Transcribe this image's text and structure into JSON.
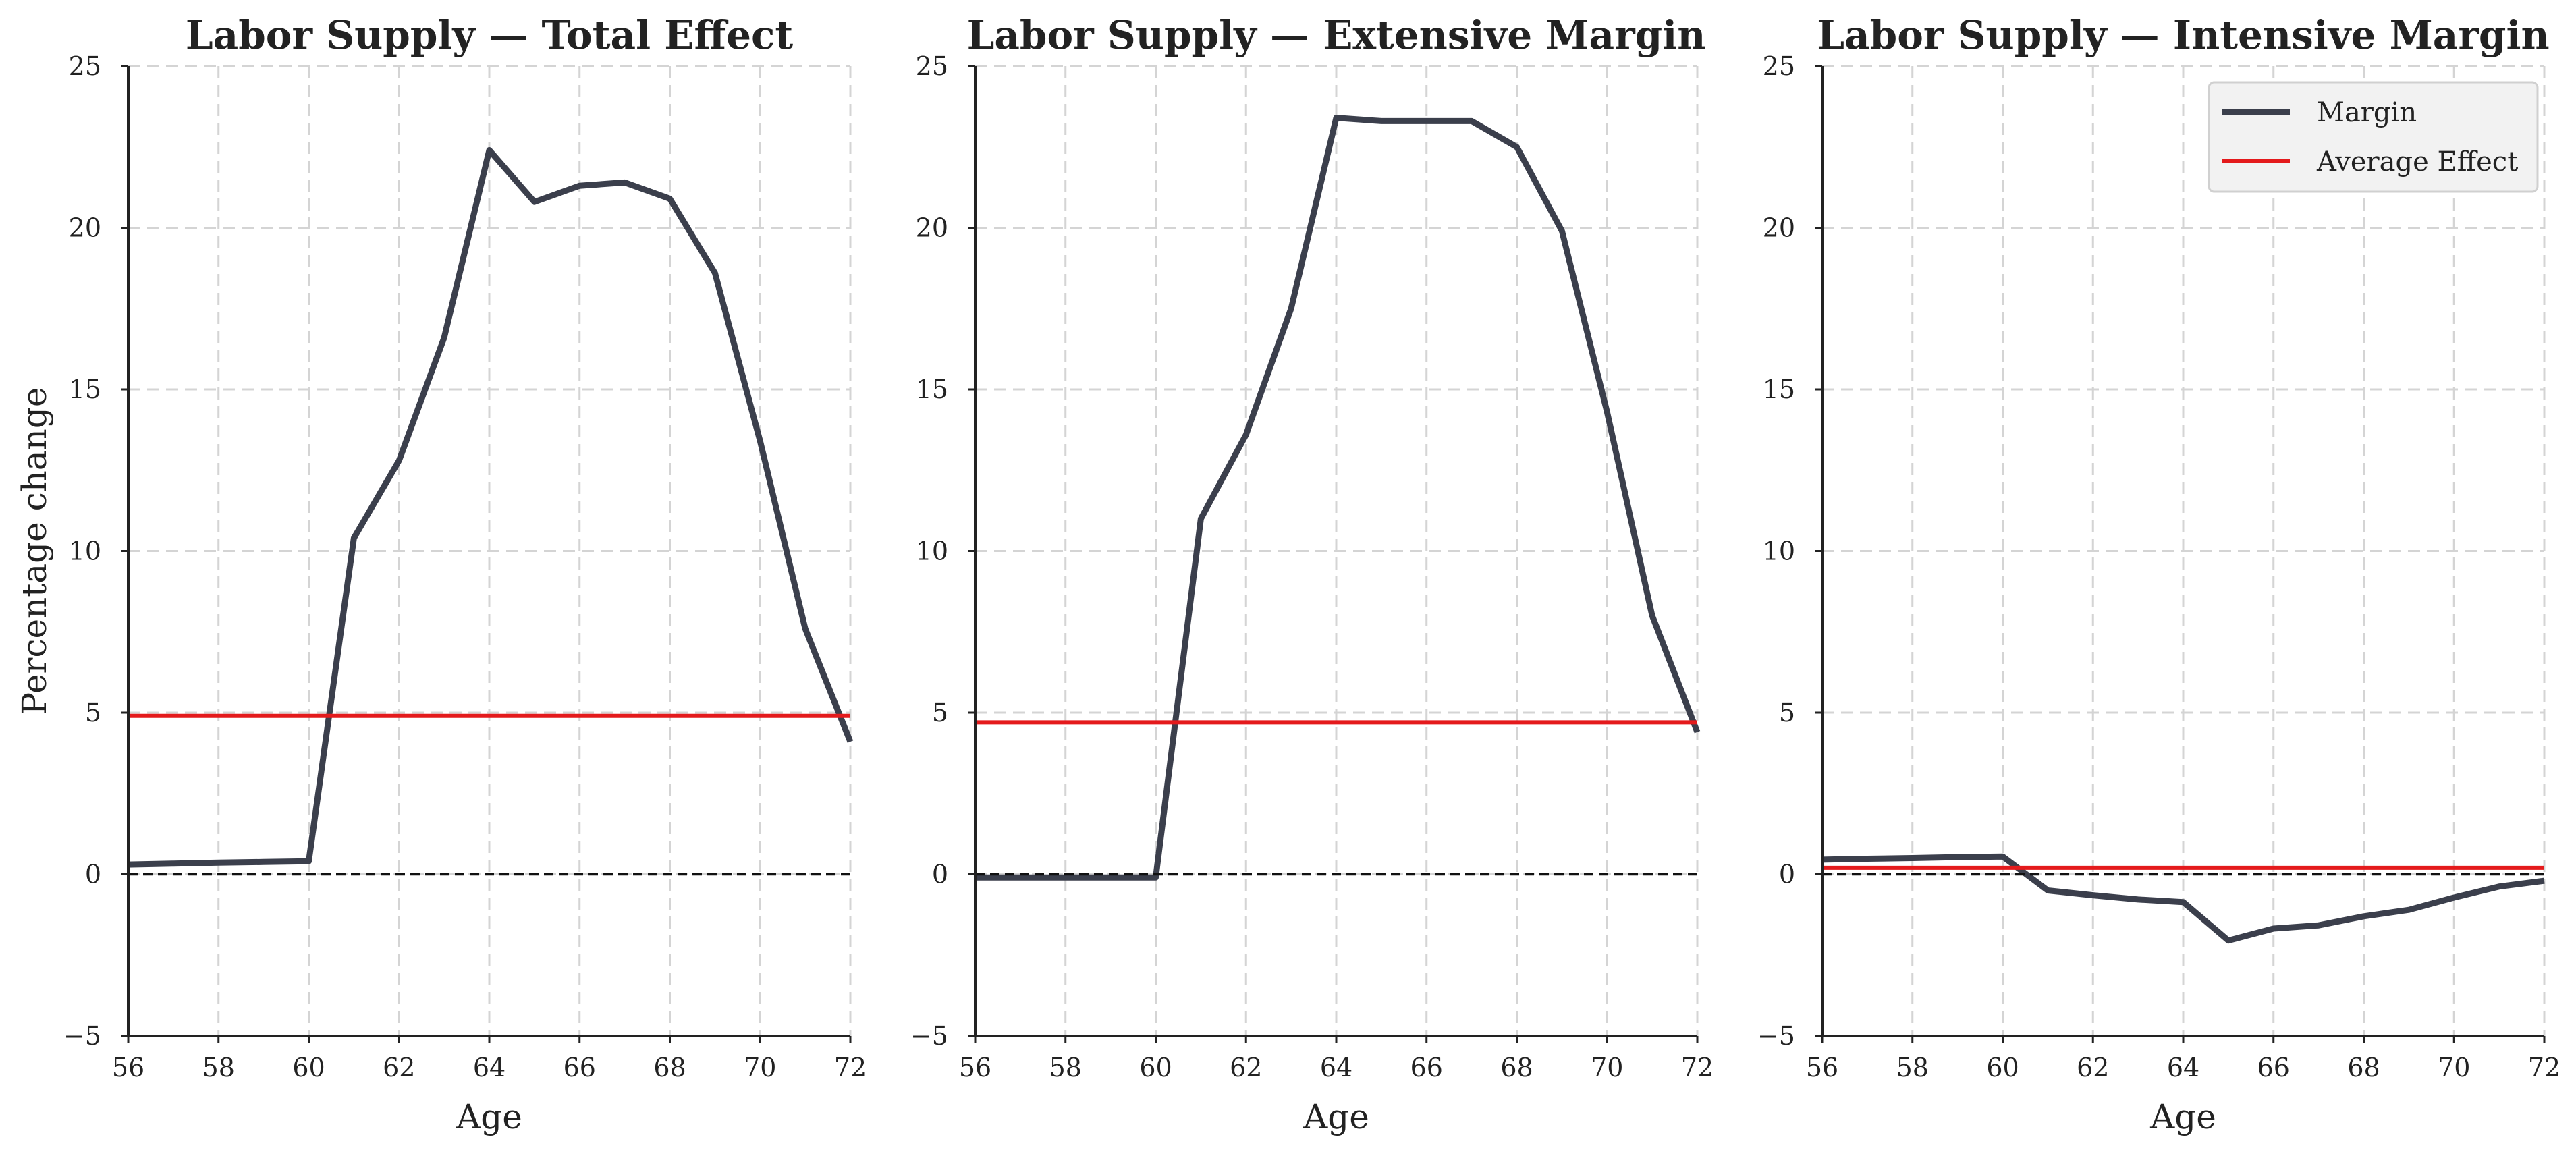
{
  "chart_data": [
    {
      "type": "line",
      "title": "Labor Supply — Total Effect",
      "xlabel": "Age",
      "ylabel": "Percentage change",
      "xlim": [
        56,
        72
      ],
      "ylim": [
        -5,
        25
      ],
      "xticks": [
        56,
        58,
        60,
        62,
        64,
        66,
        68,
        70,
        72
      ],
      "yticks": [
        -5,
        0,
        5,
        10,
        15,
        20,
        25
      ],
      "xtick_labels": [
        "56",
        "58",
        "60",
        "62",
        "64",
        "66",
        "68",
        "70",
        "72"
      ],
      "ytick_labels": [
        "−5",
        "0",
        "5",
        "10",
        "15",
        "20",
        "25"
      ],
      "grid": true,
      "series": [
        {
          "x": [
            56,
            57,
            58,
            59,
            60,
            61,
            62,
            63,
            64,
            65,
            66,
            67,
            68,
            69,
            70,
            71,
            72
          ],
          "values": [
            0.3,
            0.33,
            0.36,
            0.38,
            0.4,
            10.4,
            12.8,
            16.6,
            22.4,
            20.8,
            21.3,
            21.4,
            20.9,
            18.6,
            13.4,
            7.6,
            4.1
          ]
        },
        {
          "type": "hline",
          "y": 4.9
        },
        {
          "type": "hline",
          "y": 0
        }
      ]
    },
    {
      "type": "line",
      "title": "Labor Supply — Extensive Margin",
      "xlabel": "Age",
      "ylabel": "",
      "xlim": [
        56,
        72
      ],
      "ylim": [
        -5,
        25
      ],
      "xticks": [
        56,
        58,
        60,
        62,
        64,
        66,
        68,
        70,
        72
      ],
      "yticks": [
        -5,
        0,
        5,
        10,
        15,
        20,
        25
      ],
      "xtick_labels": [
        "56",
        "58",
        "60",
        "62",
        "64",
        "66",
        "68",
        "70",
        "72"
      ],
      "ytick_labels": [
        "−5",
        "0",
        "5",
        "10",
        "15",
        "20",
        "25"
      ],
      "grid": true,
      "series": [
        {
          "x": [
            56,
            57,
            58,
            59,
            60,
            61,
            62,
            63,
            64,
            65,
            66,
            67,
            68,
            69,
            70,
            71,
            72
          ],
          "values": [
            -0.1,
            -0.1,
            -0.1,
            -0.1,
            -0.1,
            11.0,
            13.6,
            17.5,
            23.4,
            23.3,
            23.3,
            23.3,
            22.5,
            19.9,
            14.3,
            8.0,
            4.4
          ]
        },
        {
          "type": "hline",
          "y": 4.7
        },
        {
          "type": "hline",
          "y": 0
        }
      ]
    },
    {
      "type": "line",
      "title": "Labor Supply — Intensive Margin",
      "xlabel": "Age",
      "ylabel": "",
      "xlim": [
        56,
        72
      ],
      "ylim": [
        -5,
        25
      ],
      "xticks": [
        56,
        58,
        60,
        62,
        64,
        66,
        68,
        70,
        72
      ],
      "yticks": [
        -5,
        0,
        5,
        10,
        15,
        20,
        25
      ],
      "xtick_labels": [
        "56",
        "58",
        "60",
        "62",
        "64",
        "66",
        "68",
        "70",
        "72"
      ],
      "ytick_labels": [
        "−5",
        "0",
        "5",
        "10",
        "15",
        "20",
        "25"
      ],
      "grid": true,
      "legend": {
        "location": "top-right",
        "entries": [
          "Margin",
          "Average Effect"
        ]
      },
      "series": [
        {
          "name": "Margin",
          "x": [
            56,
            57,
            58,
            59,
            60,
            61,
            62,
            63,
            64,
            65,
            66,
            67,
            68,
            69,
            70,
            71,
            72
          ],
          "values": [
            0.45,
            0.48,
            0.5,
            0.53,
            0.55,
            -0.5,
            -0.65,
            -0.78,
            -0.86,
            -2.05,
            -1.68,
            -1.58,
            -1.3,
            -1.1,
            -0.72,
            -0.38,
            -0.2
          ]
        },
        {
          "name": "Average Effect",
          "type": "hline",
          "y": 0.2
        },
        {
          "type": "hline",
          "y": 0
        }
      ]
    }
  ],
  "colors": {
    "margin_line": "#3b3f4c",
    "average_line": "#e41a1c",
    "zero_line": "#111111",
    "grid": "#d4d4d4",
    "axis": "#222222",
    "legend_bg": "#f2f2f2"
  }
}
